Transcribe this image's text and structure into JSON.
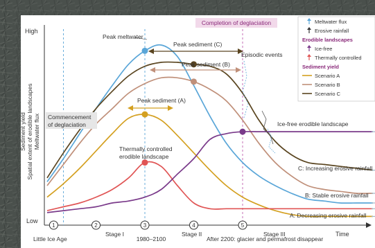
{
  "chart_data": {
    "type": "line",
    "y_axis": {
      "title_lines": [
        "Sediment yield",
        "Spatial extent of erodible landscapes",
        "Meltwater flux"
      ],
      "top_label": "High",
      "bottom_label": "Low"
    },
    "x": [
      0,
      5,
      10,
      15,
      20,
      25,
      30,
      35,
      40,
      45,
      50,
      55,
      60,
      65,
      70,
      75,
      80,
      85,
      90,
      95,
      100
    ],
    "xlim": [
      0,
      100
    ],
    "ylim": [
      0,
      100
    ],
    "series": [
      {
        "name": "Meltwater flux",
        "key": "meltwater",
        "color": "#5aa6d8",
        "values": [
          20,
          32,
          45,
          58,
          70,
          81,
          88,
          91,
          85,
          70,
          54,
          40,
          30,
          23,
          18,
          14,
          11,
          10,
          9,
          9,
          9
        ]
      },
      {
        "name": "Scenario C",
        "key": "scenC",
        "color": "#5a4520",
        "values": [
          22,
          35,
          47,
          58,
          67,
          75,
          80,
          82,
          82,
          81,
          80,
          76,
          66,
          52,
          41,
          34,
          30,
          29,
          28,
          27,
          26
        ]
      },
      {
        "name": "Scenario B",
        "key": "scenB",
        "color": "#c0907a",
        "values": [
          18,
          29,
          40,
          50,
          58,
          66,
          71,
          74,
          74,
          72,
          68,
          62,
          52,
          40,
          30,
          23,
          18,
          16,
          15,
          14,
          14
        ]
      },
      {
        "name": "Scenario A",
        "key": "scenA",
        "color": "#d4a020",
        "values": [
          12,
          19,
          27,
          36,
          45,
          53,
          55,
          52,
          44,
          35,
          26,
          18,
          12,
          8,
          5,
          3,
          2,
          2,
          2,
          2,
          2
        ]
      },
      {
        "name": "Thermally controlled",
        "key": "thermal",
        "color": "#e05555",
        "values": [
          5,
          7,
          9,
          12,
          16,
          22,
          30,
          28,
          18,
          9,
          6,
          6,
          6,
          6,
          6,
          6,
          6,
          6,
          6,
          6,
          6
        ]
      },
      {
        "name": "Ice-free",
        "key": "icefree",
        "color": "#7a3a8a",
        "values": [
          4,
          5,
          6,
          7,
          9,
          10,
          12,
          16,
          24,
          32,
          42,
          45,
          46,
          46,
          46,
          46,
          46,
          46,
          46,
          46,
          46
        ]
      }
    ],
    "verticals": [
      {
        "x": 5,
        "color": "#5aa6d8"
      },
      {
        "x": 30,
        "color": "#5aa6d8"
      },
      {
        "x": 60,
        "color": "#c060b0"
      }
    ],
    "markers": [
      {
        "series": "meltwater",
        "x": 30,
        "color": "#5aa6d8"
      },
      {
        "series": "scenC",
        "x": 45,
        "color": "#5a4520"
      },
      {
        "series": "scenB",
        "x": 45,
        "color": "#c0907a"
      },
      {
        "series": "scenA",
        "x": 30,
        "color": "#d4a020"
      },
      {
        "series": "thermal",
        "x": 30,
        "color": "#e05555"
      },
      {
        "series": "icefree",
        "x": 60,
        "color": "#7a3a8a"
      }
    ],
    "stages": [
      {
        "num": "1",
        "x": 2
      },
      {
        "num": "2",
        "x": 15
      },
      {
        "num": "3",
        "x": 30
      },
      {
        "num": "4",
        "x": 45
      },
      {
        "num": "5",
        "x": 60
      }
    ],
    "annotations": {
      "peak_meltwater": "Peak meltwater",
      "completion": "Completion of deglaciation",
      "peak_c": "Peak sediment (C)",
      "peak_b": "Peak sediment (B)",
      "peak_a": "Peak sediment (A)",
      "episodic": "Episodic events",
      "commencement_1": "Commencement",
      "commencement_2": "of deglaciation",
      "thermal_1": "Thermally controlled",
      "thermal_2": "erodible landscape",
      "icefree_label": "Ice-free erodible landscape",
      "c_end": "C: Increasing erosive rainfall",
      "b_end": "B: Stable erosive rainfall",
      "a_end": "A: Decreasing erosive rainfall",
      "time": "Time"
    },
    "x_bottom_labels": {
      "little_ice_age": "Little Ice Age",
      "stage1": "Stage I",
      "range": "1980–2100",
      "stage2": "Stage II",
      "after2200": "After 2200: glacier and permafrost disappear",
      "stage3": "Stage III"
    },
    "legend": {
      "items": [
        {
          "kind": "arrow",
          "color": "#5aa6d8",
          "label": "Meltwater flux"
        },
        {
          "kind": "arrow",
          "color": "#333333",
          "label": "Erosive rainfall"
        },
        {
          "kind": "heading",
          "color": "#8a2a7a",
          "label": "Erodible landscapes"
        },
        {
          "kind": "arrow",
          "color": "#7a3a8a",
          "label": "Ice-free"
        },
        {
          "kind": "arrow",
          "color": "#e05555",
          "label": "Thermally controlled"
        },
        {
          "kind": "heading",
          "color": "#8a2a7a",
          "label": "Sediment yield"
        },
        {
          "kind": "line",
          "color": "#d4a020",
          "label": "Scenario A"
        },
        {
          "kind": "line",
          "color": "#c0907a",
          "label": "Scenario B"
        },
        {
          "kind": "line",
          "color": "#5a4520",
          "label": "Scenario C"
        }
      ]
    }
  }
}
